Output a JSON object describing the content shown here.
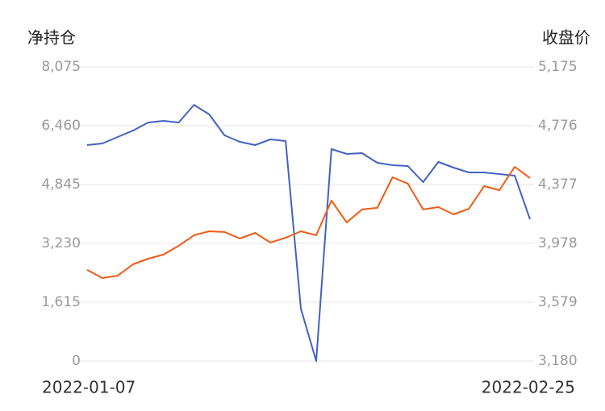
{
  "chart_data": {
    "type": "line",
    "ylabel": "净持仓",
    "y2label": "收盘价",
    "categories": [
      "2022-01-07",
      null,
      null,
      null,
      null,
      null,
      null,
      null,
      null,
      null,
      null,
      null,
      null,
      null,
      null,
      null,
      null,
      null,
      null,
      null,
      null,
      null,
      null,
      null,
      null,
      null,
      null,
      null,
      null,
      "2022-02-25"
    ],
    "ylim": [
      0,
      8075
    ],
    "yticks": [
      0,
      {
        "value": 1615,
        "label": "1,615"
      },
      {
        "value": 3230,
        "label": "3,230"
      },
      {
        "value": 4845,
        "label": "4,845"
      },
      {
        "value": 6460,
        "label": "6,460"
      },
      {
        "value": 8075,
        "label": "8,075"
      }
    ],
    "y2lim": [
      3180,
      5175
    ],
    "y2ticks": [
      {
        "value": 3180,
        "label": "3,180"
      },
      {
        "value": 3579,
        "label": "3,579"
      },
      {
        "value": 3978,
        "label": "3,978"
      },
      {
        "value": 4377,
        "label": "4,377"
      },
      {
        "value": 4776,
        "label": "4,776"
      },
      {
        "value": 5175,
        "label": "5,175"
      }
    ],
    "grid": true,
    "series": [
      {
        "color": "#4262c2",
        "values": [
          5929,
          5973,
          6150,
          6326,
          6548,
          6592,
          6548,
          7034,
          6769,
          6194,
          6017,
          5929,
          6083,
          6039,
          1438,
          0,
          5818,
          5685,
          5707,
          5442,
          5375,
          5353,
          4911,
          5464,
          5309,
          5176,
          5176,
          5132,
          5088,
          3893
        ]
      },
      {
        "color": "#f25a14",
        "axis": "y2",
        "values": [
          3798,
          3743,
          3759,
          3836,
          3874,
          3902,
          3962,
          4033,
          4060,
          4055,
          4011,
          4049,
          3984,
          4016,
          4060,
          4033,
          4268,
          4120,
          4208,
          4219,
          4426,
          4383,
          4208,
          4224,
          4175,
          4213,
          4366,
          4339,
          4497,
          4421
        ]
      }
    ]
  }
}
